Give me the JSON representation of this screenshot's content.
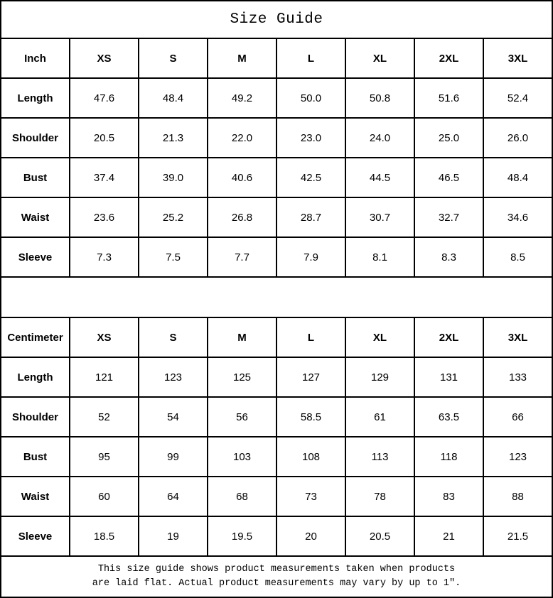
{
  "title": "Size Guide",
  "chart_data": [
    {
      "type": "table",
      "title": "Size Guide",
      "unit": "Inch",
      "columns": [
        "Inch",
        "XS",
        "S",
        "M",
        "L",
        "XL",
        "2XL",
        "3XL"
      ],
      "rows": [
        {
          "label": "Length",
          "values": [
            "47.6",
            "48.4",
            "49.2",
            "50.0",
            "50.8",
            "51.6",
            "52.4"
          ]
        },
        {
          "label": "Shoulder",
          "values": [
            "20.5",
            "21.3",
            "22.0",
            "23.0",
            "24.0",
            "25.0",
            "26.0"
          ]
        },
        {
          "label": "Bust",
          "values": [
            "37.4",
            "39.0",
            "40.6",
            "42.5",
            "44.5",
            "46.5",
            "48.4"
          ]
        },
        {
          "label": "Waist",
          "values": [
            "23.6",
            "25.2",
            "26.8",
            "28.7",
            "30.7",
            "32.7",
            "34.6"
          ]
        },
        {
          "label": "Sleeve",
          "values": [
            "7.3",
            "7.5",
            "7.7",
            "7.9",
            "8.1",
            "8.3",
            "8.5"
          ]
        }
      ]
    },
    {
      "type": "table",
      "title": "Size Guide",
      "unit": "Centimeter",
      "columns": [
        "Centimeter",
        "XS",
        "S",
        "M",
        "L",
        "XL",
        "2XL",
        "3XL"
      ],
      "rows": [
        {
          "label": "Length",
          "values": [
            "121",
            "123",
            "125",
            "127",
            "129",
            "131",
            "133"
          ]
        },
        {
          "label": "Shoulder",
          "values": [
            "52",
            "54",
            "56",
            "58.5",
            "61",
            "63.5",
            "66"
          ]
        },
        {
          "label": "Bust",
          "values": [
            "95",
            "99",
            "103",
            "108",
            "113",
            "118",
            "123"
          ]
        },
        {
          "label": "Waist",
          "values": [
            "60",
            "64",
            "68",
            "73",
            "78",
            "83",
            "88"
          ]
        },
        {
          "label": "Sleeve",
          "values": [
            "18.5",
            "19",
            "19.5",
            "20",
            "20.5",
            "21",
            "21.5"
          ]
        }
      ]
    }
  ],
  "footer": {
    "line1": "This size guide shows product measurements taken when products",
    "line2": "are laid flat. Actual product measurements may vary by up to 1″."
  },
  "colors": {
    "border": "#000000",
    "text": "#000000",
    "background": "#ffffff"
  }
}
